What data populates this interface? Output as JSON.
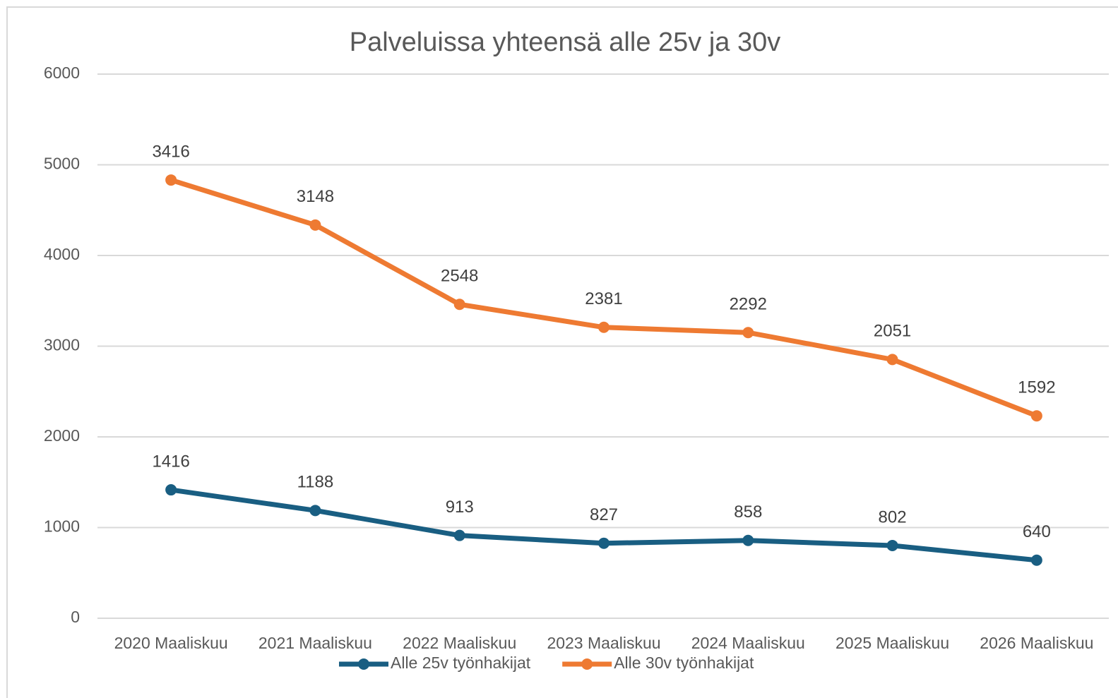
{
  "chart_data": {
    "type": "line",
    "stacked": true,
    "title": "Palveluissa yhteensä alle 25v ja 30v",
    "categories": [
      "2020 Maaliskuu",
      "2021 Maaliskuu",
      "2022 Maaliskuu",
      "2023 Maaliskuu",
      "2024 Maaliskuu",
      "2025 Maaliskuu",
      "2026 Maaliskuu"
    ],
    "series": [
      {
        "name": "Alle 25v työnhakijat",
        "color": "#195e82",
        "values": [
          1416,
          1188,
          913,
          827,
          858,
          802,
          640
        ]
      },
      {
        "name": "Alle 30v työnhakijat",
        "color": "#ee7a32",
        "values": [
          3416,
          3148,
          2548,
          2381,
          2292,
          2051,
          1592
        ]
      }
    ],
    "ylim": [
      0,
      6000
    ],
    "yticks": [
      0,
      1000,
      2000,
      3000,
      4000,
      5000,
      6000
    ],
    "grid": true,
    "legend": "bottom"
  }
}
